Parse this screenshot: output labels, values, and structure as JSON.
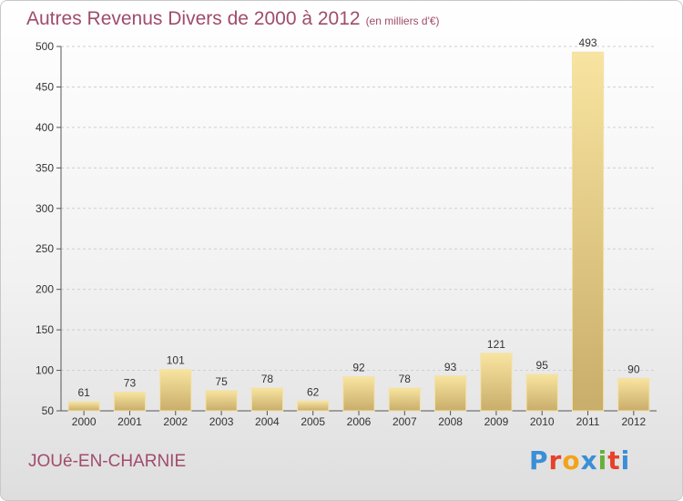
{
  "chart_data": {
    "type": "bar",
    "title": "Autres Revenus Divers de 2000 à 2012",
    "subtitle": "(en milliers d'€)",
    "categories": [
      "2000",
      "2001",
      "2002",
      "2003",
      "2004",
      "2005",
      "2006",
      "2007",
      "2008",
      "2009",
      "2010",
      "2011",
      "2012"
    ],
    "values": [
      61,
      73,
      101,
      75,
      78,
      62,
      92,
      78,
      93,
      121,
      95,
      493,
      90
    ],
    "ylim": [
      50,
      500
    ],
    "yticks": [
      50,
      100,
      150,
      200,
      250,
      300,
      350,
      400,
      450,
      500
    ],
    "xlabel": "",
    "ylabel": "",
    "grid": true,
    "colors": {
      "bar_light": "#f8e4a0",
      "bar_dark": "#c9ad6a",
      "grid": "#d0d0d0"
    }
  },
  "footer": {
    "place_name": "JOUé-EN-CHARNIE",
    "logo_text": "Proxiti",
    "logo_colors": [
      "#3a8fd6",
      "#e8412a",
      "#f2a31b",
      "#3a8fd6",
      "#66b03a",
      "#e8412a",
      "#3a8fd6"
    ]
  }
}
